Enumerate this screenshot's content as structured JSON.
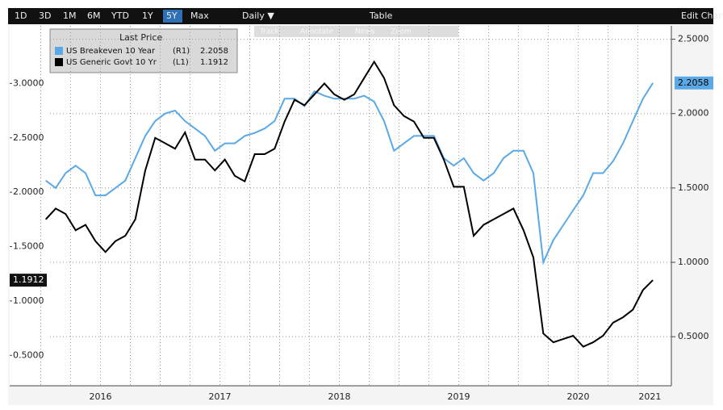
{
  "toolbar": {
    "ranges": [
      "1D",
      "3D",
      "1M",
      "6M",
      "YTD",
      "1Y",
      "5Y",
      "Max"
    ],
    "selected": "5Y",
    "frequency": "Daily ▼",
    "table": "Table",
    "edit": "Edit Chart",
    "tools": [
      "Track",
      "Annotate",
      "News",
      "Zoom"
    ]
  },
  "chart_data": {
    "type": "line",
    "legend_title": "Last Price",
    "x": [
      2016.042,
      2016.125,
      2016.208,
      2016.292,
      2016.375,
      2016.458,
      2016.542,
      2016.625,
      2016.708,
      2016.792,
      2016.875,
      2016.958,
      2017.042,
      2017.125,
      2017.208,
      2017.292,
      2017.375,
      2017.458,
      2017.542,
      2017.625,
      2017.708,
      2017.792,
      2017.875,
      2017.958,
      2018.042,
      2018.125,
      2018.208,
      2018.292,
      2018.375,
      2018.458,
      2018.542,
      2018.625,
      2018.708,
      2018.792,
      2018.875,
      2018.958,
      2019.042,
      2019.125,
      2019.208,
      2019.292,
      2019.375,
      2019.458,
      2019.542,
      2019.625,
      2019.708,
      2019.792,
      2019.875,
      2019.958,
      2020.042,
      2020.125,
      2020.208,
      2020.292,
      2020.375,
      2020.458,
      2020.542,
      2020.625,
      2020.708,
      2020.792,
      2020.875,
      2020.958,
      2021.042,
      2021.125
    ],
    "xlim": [
      2015.74,
      2021.28
    ],
    "xticks": [
      {
        "value": 2016.5,
        "label": "2016"
      },
      {
        "value": 2017.5,
        "label": "2017"
      },
      {
        "value": 2018.5,
        "label": "2018"
      },
      {
        "value": 2019.5,
        "label": "2019"
      },
      {
        "value": 2020.5,
        "label": "2020"
      },
      {
        "value": 2021.1,
        "label": "2021"
      }
    ],
    "xgrid": [
      2016.0,
      2016.25,
      2016.5,
      2016.75,
      2017.0,
      2017.25,
      2017.5,
      2017.75,
      2018.0,
      2018.25,
      2018.5,
      2018.75,
      2019.0,
      2019.25,
      2019.5,
      2019.75,
      2020.0,
      2020.25,
      2020.5,
      2020.75,
      2021.0
    ],
    "ylim": [
      0.22,
      3.53
    ],
    "yticks": [
      {
        "value": 0.5,
        "label": "0.5000"
      },
      {
        "value": 1,
        "label": "1.0000"
      },
      {
        "value": 1.5,
        "label": "1.5000"
      },
      {
        "value": 2,
        "label": "2.0000"
      },
      {
        "value": 2.5,
        "label": "2.5000"
      },
      {
        "value": 3,
        "label": "3.0000"
      }
    ],
    "y2lim": [
      0.17,
      2.59
    ],
    "y2ticks": [
      {
        "value": 0.5,
        "label": "0.5000"
      },
      {
        "value": 1,
        "label": "1.0000"
      },
      {
        "value": 1.5,
        "label": "1.5000"
      },
      {
        "value": 2,
        "label": "2.0000"
      },
      {
        "value": 2.5,
        "label": "2.5000"
      }
    ],
    "grid": true,
    "series": [
      {
        "name": "US Breakeven 10 Year",
        "axis_label": "(R1)",
        "axis": "y2",
        "color": "#5aa9e6",
        "values": [
          1.55,
          1.5,
          1.6,
          1.65,
          1.6,
          1.45,
          1.45,
          1.5,
          1.55,
          1.7,
          1.85,
          1.95,
          2.0,
          2.02,
          1.95,
          1.9,
          1.85,
          1.75,
          1.8,
          1.8,
          1.85,
          1.87,
          1.9,
          1.95,
          2.1,
          2.1,
          2.05,
          2.15,
          2.12,
          2.1,
          2.1,
          2.1,
          2.12,
          2.08,
          1.95,
          1.75,
          1.8,
          1.85,
          1.85,
          1.85,
          1.7,
          1.65,
          1.7,
          1.6,
          1.55,
          1.6,
          1.7,
          1.75,
          1.75,
          1.6,
          1.0,
          1.15,
          1.25,
          1.35,
          1.45,
          1.6,
          1.6,
          1.68,
          1.8,
          1.95,
          2.1,
          2.2058
        ]
      },
      {
        "name": "US Generic Govt 10 Yr",
        "axis_label": "(L1)",
        "axis": "y",
        "color": "#000000",
        "values": [
          1.75,
          1.85,
          1.8,
          1.65,
          1.7,
          1.55,
          1.45,
          1.55,
          1.6,
          1.75,
          2.2,
          2.5,
          2.45,
          2.4,
          2.55,
          2.3,
          2.3,
          2.2,
          2.3,
          2.15,
          2.1,
          2.35,
          2.35,
          2.4,
          2.65,
          2.85,
          2.8,
          2.9,
          3.0,
          2.9,
          2.85,
          2.9,
          3.05,
          3.2,
          3.05,
          2.8,
          2.7,
          2.65,
          2.5,
          2.5,
          2.3,
          2.05,
          2.05,
          1.6,
          1.7,
          1.75,
          1.8,
          1.85,
          1.65,
          1.4,
          0.7,
          0.62,
          0.65,
          0.68,
          0.58,
          0.62,
          0.68,
          0.8,
          0.85,
          0.92,
          1.1,
          1.1912
        ]
      }
    ]
  }
}
